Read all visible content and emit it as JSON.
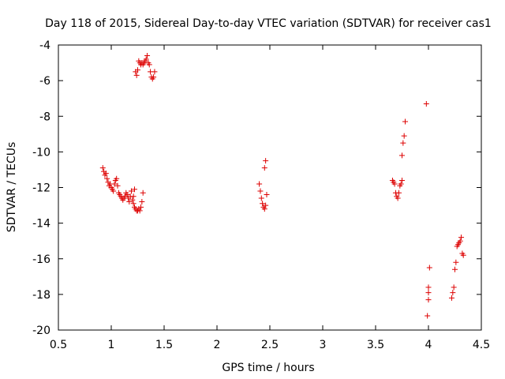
{
  "chart_data": {
    "type": "scatter",
    "title": "Day 118 of 2015, Sidereal Day-to-day VTEC variation (SDTVAR) for receiver cas1",
    "xlabel": "GPS time / hours",
    "ylabel": "SDTVAR / TECUs",
    "xlim": [
      0.5,
      4.5
    ],
    "ylim": [
      -20,
      -4
    ],
    "xticks": [
      0.5,
      1,
      1.5,
      2,
      2.5,
      3,
      3.5,
      4,
      4.5
    ],
    "xtick_labels": [
      "0.5",
      "1",
      "1.5",
      "2",
      "2.5",
      "3",
      "3.5",
      "4",
      "4.5"
    ],
    "yticks": [
      -20,
      -18,
      -16,
      -14,
      -12,
      -10,
      -8,
      -6,
      -4
    ],
    "ytick_labels": [
      "-20",
      "-18",
      "-16",
      "-14",
      "-12",
      "-10",
      "-8",
      "-6",
      "-4"
    ],
    "grid": false,
    "marker": "+",
    "color": "#dd0000",
    "series": [
      {
        "name": "cas1",
        "x": [
          0.92,
          0.93,
          0.94,
          0.95,
          0.96,
          0.97,
          0.98,
          0.99,
          1.0,
          1.01,
          1.02,
          1.03,
          1.04,
          1.05,
          1.06,
          1.07,
          1.08,
          1.09,
          1.1,
          1.11,
          1.12,
          1.13,
          1.14,
          1.15,
          1.16,
          1.17,
          1.18,
          1.19,
          1.2,
          1.21,
          1.22,
          1.23,
          1.24,
          1.25,
          1.26,
          1.27,
          1.28,
          1.29,
          1.3,
          1.21,
          1.22,
          1.24,
          1.23,
          1.25,
          1.26,
          1.27,
          1.28,
          1.29,
          1.3,
          1.31,
          1.32,
          1.33,
          1.34,
          1.35,
          1.36,
          1.37,
          1.38,
          1.39,
          1.4,
          1.41,
          2.4,
          2.41,
          2.42,
          2.43,
          2.44,
          2.45,
          2.46,
          2.47,
          2.45,
          2.46,
          3.66,
          3.67,
          3.68,
          3.69,
          3.7,
          3.71,
          3.72,
          3.73,
          3.74,
          3.75,
          3.75,
          3.76,
          3.77,
          3.78,
          3.98,
          3.99,
          4.0,
          4.0,
          4.0,
          4.01,
          4.22,
          4.23,
          4.24,
          4.25,
          4.26,
          4.27,
          4.28,
          4.29,
          4.3,
          4.31,
          4.32,
          4.33
        ],
        "y": [
          -10.9,
          -11.1,
          -11.3,
          -11.2,
          -11.5,
          -11.7,
          -11.9,
          -11.8,
          -12.0,
          -12.1,
          -12.2,
          -11.8,
          -11.6,
          -11.5,
          -11.9,
          -12.3,
          -12.4,
          -12.5,
          -12.6,
          -12.7,
          -12.6,
          -12.5,
          -12.3,
          -12.4,
          -12.6,
          -12.8,
          -12.5,
          -12.2,
          -12.7,
          -12.9,
          -13.1,
          -13.2,
          -13.3,
          -13.3,
          -13.2,
          -13.3,
          -13.1,
          -12.8,
          -12.3,
          -12.5,
          -12.1,
          -5.7,
          -5.5,
          -5.4,
          -4.9,
          -5.0,
          -5.1,
          -5.0,
          -5.1,
          -5.0,
          -4.9,
          -4.8,
          -4.6,
          -5.0,
          -5.1,
          -5.5,
          -5.8,
          -5.9,
          -5.8,
          -5.5,
          -11.8,
          -12.2,
          -12.6,
          -12.9,
          -13.1,
          -13.2,
          -13.0,
          -12.4,
          -10.9,
          -10.5,
          -11.6,
          -11.7,
          -11.8,
          -12.3,
          -12.5,
          -12.6,
          -12.3,
          -11.9,
          -11.8,
          -11.6,
          -10.2,
          -9.5,
          -9.1,
          -8.3,
          -7.3,
          -19.2,
          -18.3,
          -17.9,
          -17.6,
          -16.5,
          -18.2,
          -17.9,
          -17.6,
          -16.6,
          -16.2,
          -15.3,
          -15.2,
          -15.1,
          -15.0,
          -14.8,
          -15.7,
          -15.8
        ]
      }
    ]
  }
}
